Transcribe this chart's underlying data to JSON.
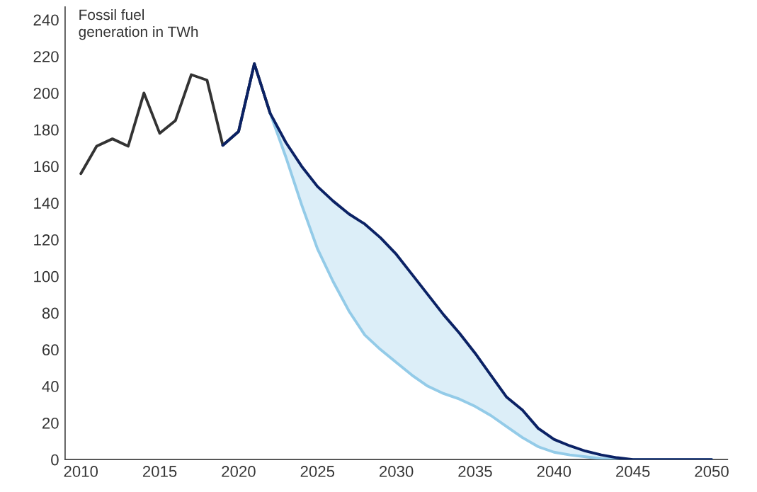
{
  "chart_data": {
    "type": "line",
    "ylabel": "Fossil fuel\ngeneration in TWh",
    "xlim": [
      2009,
      2051
    ],
    "xticks": [
      2010,
      2015,
      2020,
      2025,
      2030,
      2035,
      2040,
      2045,
      2050
    ],
    "ylim": [
      0,
      247
    ],
    "yticks": [
      0,
      20,
      40,
      60,
      80,
      100,
      120,
      140,
      160,
      180,
      200,
      220,
      240
    ],
    "grid": false,
    "marker": "none",
    "line_style": "solid",
    "series": [
      {
        "color": "#333333",
        "x": [
          2010,
          2011,
          2012,
          2013,
          2014,
          2015,
          2016,
          2017,
          2018,
          2019,
          2020,
          2021,
          2022
        ],
        "values": [
          156,
          171,
          175,
          171,
          200,
          178,
          185,
          210,
          207,
          171.5,
          179,
          216,
          189
        ]
      },
      {
        "color": "#93cbe8",
        "x": [
          2022,
          2023,
          2024,
          2025,
          2026,
          2027,
          2028,
          2029,
          2030,
          2031,
          2032,
          2033,
          2034,
          2035,
          2036,
          2037,
          2038,
          2039,
          2040,
          2041,
          2042,
          2043,
          2044,
          2045,
          2050
        ],
        "values": [
          189,
          165,
          139,
          115,
          97,
          81,
          68,
          60,
          53,
          46,
          40,
          36,
          33,
          29,
          24,
          18,
          12,
          7,
          4,
          2.5,
          1.5,
          0.5,
          0.3,
          0,
          0
        ]
      },
      {
        "color": "#0b2265",
        "x": [
          2019,
          2020,
          2021,
          2022,
          2023,
          2024,
          2025,
          2026,
          2027,
          2028,
          2029,
          2030,
          2031,
          2032,
          2033,
          2034,
          2035,
          2036,
          2037,
          2038,
          2039,
          2040,
          2041,
          2042,
          2043,
          2044,
          2045,
          2050
        ],
        "values": [
          171.5,
          179,
          216,
          189,
          173,
          160,
          149,
          141,
          134,
          128.5,
          121,
          112,
          101,
          90,
          79,
          69,
          58,
          46,
          34,
          27,
          17,
          11,
          7.5,
          4.6,
          2.5,
          1,
          0,
          0
        ],
        "lower": [
          null,
          null,
          null,
          189,
          165,
          139,
          115,
          97,
          81,
          68,
          60,
          53,
          46,
          40,
          36,
          33,
          29,
          24,
          18,
          12,
          7,
          4,
          2.5,
          1.5,
          0.5,
          0.3,
          0,
          0
        ],
        "upper": [
          null,
          null,
          null,
          189,
          173,
          160,
          149,
          141,
          134,
          128.5,
          121,
          112,
          101,
          90,
          79,
          69,
          58,
          46,
          34,
          27,
          17,
          11,
          7.5,
          4.6,
          2.5,
          1,
          0,
          0
        ]
      }
    ]
  }
}
